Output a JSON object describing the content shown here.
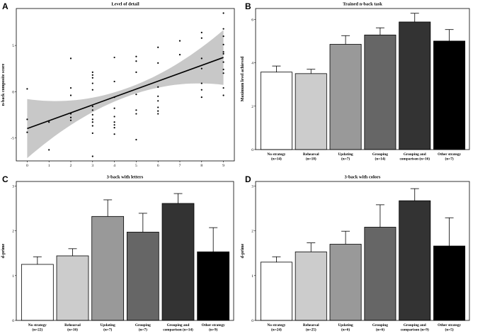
{
  "colors": {
    "bars": [
      "#ffffff",
      "#cccccc",
      "#999999",
      "#666666",
      "#333333",
      "#000000"
    ],
    "ribbon": "#c8c8c8",
    "line": "#000000",
    "points": "#000000"
  },
  "chart_data": [
    {
      "panel": "A",
      "type": "scatter",
      "title": "Level of detail",
      "xlabel": "",
      "ylabel": "n-back composite score",
      "xticks": [
        "0",
        "1",
        "2",
        "3",
        "4",
        "5",
        "6",
        "7",
        "8",
        "9"
      ],
      "yticks": [
        "-5",
        "0",
        "5"
      ],
      "xlim": [
        -0.5,
        9.5
      ],
      "ylim": [
        -7.5,
        9
      ],
      "fit": {
        "x0": 0,
        "y0": -4.0,
        "x1": 9,
        "y1": 3.7
      },
      "points": [
        [
          0,
          0.3
        ],
        [
          0,
          -3.0
        ],
        [
          0,
          -4.4
        ],
        [
          1,
          -3.3
        ],
        [
          1,
          -6.3
        ],
        [
          2,
          3.6
        ],
        [
          2,
          0.4
        ],
        [
          2,
          -0.4
        ],
        [
          2,
          -2.4
        ],
        [
          2,
          -2.8
        ],
        [
          2,
          -3.1
        ],
        [
          3,
          2.1
        ],
        [
          3,
          1.8
        ],
        [
          3,
          1.5
        ],
        [
          3,
          0.9
        ],
        [
          3,
          0.2
        ],
        [
          3,
          -1.6
        ],
        [
          3,
          -2.0
        ],
        [
          3,
          -2.5
        ],
        [
          3,
          -3.0
        ],
        [
          3,
          -3.3
        ],
        [
          3,
          -3.7
        ],
        [
          3,
          -4.5
        ],
        [
          3,
          -7.0
        ],
        [
          4,
          3.7
        ],
        [
          4,
          1.1
        ],
        [
          4,
          -0.6
        ],
        [
          4,
          -1.8
        ],
        [
          4,
          -2.7
        ],
        [
          4,
          -3.3
        ],
        [
          4,
          -3.6
        ],
        [
          4,
          -3.9
        ],
        [
          4,
          -4.6
        ],
        [
          5,
          3.8
        ],
        [
          5,
          3.3
        ],
        [
          5,
          2.1
        ],
        [
          5,
          -0.3
        ],
        [
          5,
          -2.0
        ],
        [
          5,
          -2.4
        ],
        [
          5,
          -5.2
        ],
        [
          6,
          4.8
        ],
        [
          6,
          3.1
        ],
        [
          6,
          0.5
        ],
        [
          6,
          -0.5
        ],
        [
          6,
          -1.0
        ],
        [
          6,
          -1.7
        ],
        [
          6,
          -2.1
        ],
        [
          6,
          -2.4
        ],
        [
          7,
          5.5
        ],
        [
          7,
          4.0
        ],
        [
          8,
          6.4
        ],
        [
          8,
          5.8
        ],
        [
          8,
          3.6
        ],
        [
          8,
          2.5
        ],
        [
          8,
          0.9
        ],
        [
          8,
          0.2
        ],
        [
          8,
          -0.6
        ],
        [
          9,
          8.5
        ],
        [
          9,
          6.8
        ],
        [
          9,
          6.0
        ],
        [
          9,
          5.1
        ],
        [
          9,
          4.3
        ],
        [
          9,
          4.1
        ],
        [
          9,
          3.2
        ],
        [
          9,
          2.4
        ],
        [
          9,
          2.0
        ],
        [
          9,
          0.4
        ],
        [
          9,
          -0.4
        ]
      ]
    },
    {
      "panel": "B",
      "type": "bar",
      "title": "Trained n-back task",
      "xlabel": "",
      "ylabel": "Maximum level achieved",
      "ylim": [
        0,
        6.5
      ],
      "yticks": [
        "0",
        "2",
        "4",
        "6"
      ],
      "categories": [
        {
          "name": "No strategy",
          "n": "(n=14)"
        },
        {
          "name": "Rehearsal",
          "n": "(n=18)"
        },
        {
          "name": "Updating",
          "n": "(n=7)"
        },
        {
          "name": "Grouping",
          "n": "(n=14)"
        },
        {
          "name": "Grouping and",
          "n": "comparison (n=16)"
        },
        {
          "name": "Other strategy",
          "n": "(n=7)"
        }
      ],
      "values": [
        3.57,
        3.5,
        4.85,
        5.28,
        5.88,
        5.0
      ],
      "errors": [
        0.28,
        0.2,
        0.4,
        0.33,
        0.4,
        0.53
      ]
    },
    {
      "panel": "C",
      "type": "bar",
      "title": "3-back with letters",
      "xlabel": "",
      "ylabel": "d-prime",
      "ylim": [
        0,
        3.1
      ],
      "yticks": [
        "0",
        "1",
        "2",
        "3"
      ],
      "categories": [
        {
          "name": "No strategy",
          "n": "(n=22)"
        },
        {
          "name": "Rehearsal",
          "n": "(n=16)"
        },
        {
          "name": "Updating",
          "n": "(n=7)"
        },
        {
          "name": "Grouping",
          "n": "(n=7)"
        },
        {
          "name": "Grouping and",
          "n": "comparison (n=14)"
        },
        {
          "name": "Other strategy",
          "n": "(n=9)"
        }
      ],
      "values": [
        1.25,
        1.44,
        2.32,
        1.97,
        2.61,
        1.53
      ],
      "errors": [
        0.17,
        0.16,
        0.37,
        0.42,
        0.22,
        0.54
      ]
    },
    {
      "panel": "D",
      "type": "bar",
      "title": "3-back with colors",
      "xlabel": "",
      "ylabel": "d-prime",
      "ylim": [
        0,
        3.1
      ],
      "yticks": [
        "0",
        "1",
        "2",
        "3"
      ],
      "categories": [
        {
          "name": "No strategy",
          "n": "(n=24)"
        },
        {
          "name": "Rehearsal",
          "n": "(n=25)"
        },
        {
          "name": "Updating",
          "n": "(n=6)"
        },
        {
          "name": "Grouping",
          "n": "(n=6)"
        },
        {
          "name": "Grouping and",
          "n": "comparison (n=9)"
        },
        {
          "name": "Other strategy",
          "n": "(n=5)"
        }
      ],
      "values": [
        1.3,
        1.53,
        1.7,
        2.08,
        2.67,
        1.66
      ],
      "errors": [
        0.12,
        0.2,
        0.29,
        0.5,
        0.27,
        0.63
      ]
    }
  ]
}
